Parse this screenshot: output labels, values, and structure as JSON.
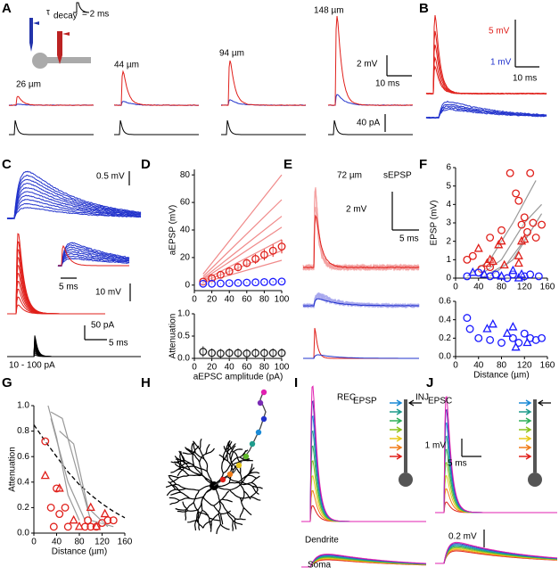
{
  "panel_labels": [
    "A",
    "B",
    "C",
    "D",
    "E",
    "F",
    "G",
    "H",
    "I",
    "J"
  ],
  "panel_a": {
    "tau": "τ",
    "tau_sub": "decay",
    "tau_text": "= 2 ms",
    "distances": [
      "26 µm",
      "44 µm",
      "94 µm",
      "148 µm"
    ],
    "scale_v": "2 mV",
    "scale_t": "10 ms",
    "scale_i": "40 pA"
  },
  "panel_b": {
    "scale_red": "5 mV",
    "scale_blue": "1 mV",
    "scale_t": "10 ms"
  },
  "panel_c": {
    "scale_blue": "0.5 mV",
    "scale_red": "10 mV",
    "scale_i": "50 pA",
    "scale_t_inset": "5 ms",
    "scale_t": "5 ms",
    "range": "10 - 100 pA"
  },
  "panel_e": {
    "distance": "72 µm",
    "kind": "sEPSP",
    "scale_v": "2 mV",
    "scale_t": "5 ms"
  },
  "panel_i": {
    "rec": "REC",
    "rec_sub": "EPSP",
    "inj": "INJ",
    "inj_sub": "EPSC",
    "scale_v": "1 mV",
    "scale_t": "5 ms",
    "dendrite": "Dendrite",
    "soma": "Soma"
  },
  "panel_j": {
    "scale_v": "0.2 mV"
  },
  "chart_data": [
    {
      "type": "scatter",
      "ylabel": "aEPSP (mV)",
      "xlim": [
        0,
        100
      ],
      "ylim": [
        -4,
        84
      ],
      "xticks": [
        0,
        20,
        40,
        60,
        80,
        100
      ],
      "yticks": [
        0,
        20,
        40,
        60,
        80
      ],
      "x": [
        10,
        20,
        30,
        40,
        50,
        60,
        70,
        80,
        90,
        100
      ],
      "series": [
        {
          "marker": "line",
          "color": "#f08a8a",
          "x": [
            10,
            100
          ],
          "values": [
            8,
            80
          ]
        },
        {
          "marker": "line",
          "color": "#f08a8a",
          "x": [
            10,
            100
          ],
          "values": [
            6.2,
            62
          ]
        },
        {
          "marker": "line",
          "color": "#f08a8a",
          "x": [
            10,
            100
          ],
          "values": [
            5,
            50
          ]
        },
        {
          "marker": "line",
          "color": "#f08a8a",
          "x": [
            10,
            100
          ],
          "values": [
            4.2,
            42
          ]
        },
        {
          "marker": "line",
          "color": "#f08a8a",
          "x": [
            10,
            100
          ],
          "values": [
            3.3,
            33
          ]
        },
        {
          "marker": "line",
          "color": "#f08a8a",
          "x": [
            10,
            100
          ],
          "values": [
            2.5,
            25
          ]
        },
        {
          "marker": "line",
          "color": "#f08a8a",
          "x": [
            10,
            100
          ],
          "values": [
            1.8,
            18
          ]
        },
        {
          "marker": "circle",
          "color": "#e0201b",
          "values": [
            2.5,
            5,
            7.5,
            10,
            13,
            16,
            19,
            22,
            25,
            28
          ],
          "errors": [
            1,
            1.5,
            2,
            2.5,
            3,
            3,
            3.5,
            4,
            4.5,
            5
          ]
        },
        {
          "marker": "circle",
          "color": "#1a1aff",
          "values": [
            1,
            1,
            1.2,
            1.4,
            1.6,
            1.8,
            2,
            2.2,
            2.4,
            2.6
          ],
          "errors": [
            0.3,
            0.3,
            0.3,
            0.4,
            0.4,
            0.4,
            0.5,
            0.5,
            0.5,
            0.5
          ]
        }
      ]
    },
    {
      "type": "scatter",
      "ylabel": "Attenuation",
      "xlabel": "aEPSC amplitude (pA)",
      "xlim": [
        0,
        100
      ],
      "ylim": [
        0,
        1
      ],
      "xticks": [
        0,
        20,
        40,
        60,
        80,
        100
      ],
      "yticks": [
        {
          "value": 0,
          "label": "0.0"
        },
        0.5,
        {
          "value": 1,
          "label": "1.0"
        }
      ],
      "x": [
        10,
        20,
        30,
        40,
        50,
        60,
        70,
        80,
        90,
        100
      ],
      "series": [
        {
          "marker": "circle",
          "color": "#222222",
          "values": [
            0.15,
            0.12,
            0.11,
            0.12,
            0.12,
            0.11,
            0.12,
            0.12,
            0.12,
            0.12
          ],
          "errors": [
            0.12,
            0.1,
            0.1,
            0.1,
            0.1,
            0.1,
            0.1,
            0.1,
            0.1,
            0.1
          ]
        }
      ]
    },
    {
      "type": "scatter",
      "ylabel": "EPSP (mV)",
      "xlim": [
        0,
        160
      ],
      "ylim": [
        0,
        6
      ],
      "xticks": [
        0,
        40,
        80,
        120,
        160
      ],
      "yticks": [
        0,
        1,
        2,
        3,
        4,
        5,
        6
      ],
      "series": [
        {
          "marker": "line",
          "color": "#999999",
          "x": [
            20,
            60,
            100,
            140
          ],
          "values": [
            0.1,
            1,
            3,
            5.3
          ]
        },
        {
          "marker": "line",
          "color": "#999999",
          "x": [
            40,
            80,
            120,
            150
          ],
          "values": [
            0.1,
            1,
            3,
            4
          ]
        },
        {
          "marker": "line",
          "color": "#999999",
          "x": [
            60,
            100,
            150
          ],
          "values": [
            0.1,
            1,
            3.5
          ]
        },
        {
          "marker": "line",
          "color": "#999999",
          "x": [
            50,
            90,
            130
          ],
          "values": [
            0.1,
            0.8,
            2.5
          ]
        },
        {
          "marker": "circle",
          "color": "#e0201b",
          "x": [
            20,
            30,
            45,
            60,
            60,
            80,
            95,
            105,
            110,
            115,
            120,
            125,
            130,
            135,
            140,
            150
          ],
          "values": [
            1,
            1.2,
            0.5,
            0.6,
            2.2,
            2.6,
            5.7,
            4.6,
            4.2,
            2.9,
            3.3,
            2.5,
            5.7,
            3,
            2.2,
            2.9
          ]
        },
        {
          "marker": "triangle",
          "color": "#e0201b",
          "x": [
            40,
            55,
            60,
            65,
            75,
            80,
            85,
            110,
            110,
            115,
            120
          ],
          "values": [
            1.6,
            0.8,
            1,
            0.9,
            1.8,
            2,
            0.7,
            1.2,
            0.8,
            2,
            2.1
          ]
        },
        {
          "marker": "circle",
          "color": "#1a1aff",
          "x": [
            20,
            40,
            60,
            70,
            90,
            100,
            120,
            130,
            145
          ],
          "values": [
            0.1,
            0.3,
            0.1,
            0.2,
            0,
            0.2,
            0.1,
            0.2,
            0.1
          ]
        },
        {
          "marker": "triangle",
          "color": "#1a1aff",
          "x": [
            30,
            50,
            80,
            100,
            110,
            115
          ],
          "values": [
            0.3,
            0.2,
            0.1,
            0.4,
            0,
            0.2
          ]
        }
      ]
    },
    {
      "type": "scatter",
      "xlabel": "Distance (µm)",
      "xlim": [
        0,
        160
      ],
      "ylim": [
        0,
        0.6
      ],
      "xticks": [
        0,
        40,
        80,
        120,
        160
      ],
      "yticks": [
        {
          "value": 0,
          "label": "0.0"
        },
        0.2,
        0.4,
        0.6
      ],
      "series": [
        {
          "marker": "circle",
          "color": "#1a1aff",
          "x": [
            20,
            25,
            40,
            60,
            80,
            100,
            110,
            120,
            130,
            140,
            150
          ],
          "values": [
            0.42,
            0.3,
            0.2,
            0.18,
            0.15,
            0.2,
            0.15,
            0.25,
            0.2,
            0.18,
            0.2
          ]
        },
        {
          "marker": "triangle",
          "color": "#1a1aff",
          "x": [
            55,
            65,
            90,
            100,
            105,
            125
          ],
          "values": [
            0.3,
            0.35,
            0.25,
            0.32,
            0.1,
            0.15
          ]
        }
      ]
    },
    {
      "type": "scatter",
      "ylabel": "Attenuation",
      "xlabel": "Distance (µm)",
      "xlim": [
        0,
        160
      ],
      "ylim": [
        0,
        1
      ],
      "xticks": [
        0,
        40,
        80,
        120,
        160
      ],
      "yticks": [
        {
          "value": 0,
          "label": "0.0"
        },
        0.2,
        0.4,
        0.6,
        0.8,
        {
          "value": 1,
          "label": "1.0"
        }
      ],
      "series": [
        {
          "marker": "dashed",
          "color": "#000000",
          "x": [
            0,
            20,
            40,
            60,
            80,
            100,
            120,
            140,
            160
          ],
          "values": [
            0.85,
            0.72,
            0.6,
            0.48,
            0.38,
            0.3,
            0.23,
            0.17,
            0.12
          ]
        },
        {
          "marker": "line",
          "color": "#999999",
          "x": [
            25,
            40,
            60,
            80
          ],
          "values": [
            1,
            0.75,
            0.3,
            0.1
          ]
        },
        {
          "marker": "line",
          "color": "#999999",
          "x": [
            30,
            50,
            75,
            100,
            140
          ],
          "values": [
            0.95,
            0.9,
            0.5,
            0.1,
            0.05
          ]
        },
        {
          "marker": "line",
          "color": "#999999",
          "x": [
            30,
            60,
            90
          ],
          "values": [
            0.9,
            0.4,
            0.1
          ]
        },
        {
          "marker": "line",
          "color": "#999999",
          "x": [
            45,
            70,
            95,
            130
          ],
          "values": [
            0.8,
            0.7,
            0.2,
            0.05
          ]
        },
        {
          "marker": "circle",
          "color": "#e0201b",
          "x": [
            20,
            30,
            35,
            40,
            45,
            55,
            60,
            90,
            95,
            100,
            110,
            120,
            130,
            140
          ],
          "values": [
            0.72,
            0.2,
            0.05,
            0.35,
            0.15,
            0.2,
            0.05,
            0.05,
            0.1,
            0.05,
            0.05,
            0.08,
            0.1,
            0.1
          ]
        },
        {
          "marker": "triangle",
          "color": "#e0201b",
          "x": [
            20,
            45,
            70,
            80,
            100,
            110,
            125
          ],
          "values": [
            0.45,
            0.35,
            0.1,
            0.05,
            0.2,
            0.05,
            0.15
          ]
        }
      ]
    }
  ]
}
